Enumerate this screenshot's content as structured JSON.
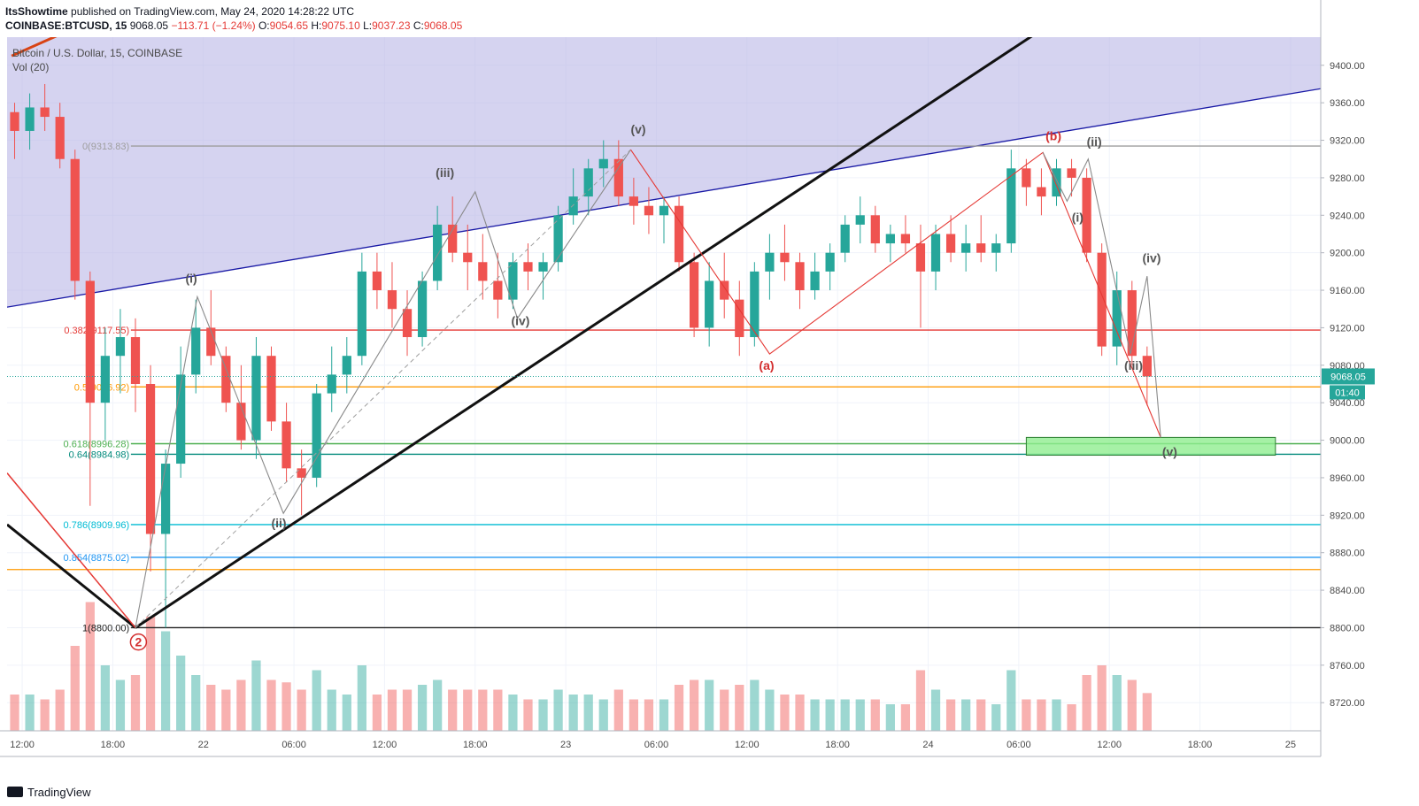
{
  "header": {
    "publisher": "ItsShowtime",
    "published_text": "published on TradingView.com, May 24, 2020 14:28:22 UTC",
    "symbol": "COINBASE:BTCUSD, 15",
    "last": "9068.05",
    "change": "−113.71 (−1.24%)",
    "o_label": "O:",
    "o": "9054.65",
    "h_label": "H:",
    "h": "9075.10",
    "l_label": "L:",
    "l": "9037.23",
    "c_label": "C:",
    "c": "9068.05"
  },
  "legend": {
    "title": "Bitcoin / U.S. Dollar, 15, COINBASE",
    "volume": "Vol (20)"
  },
  "footer": {
    "brand": "TradingView"
  },
  "colors": {
    "up": "#26a69a",
    "down": "#ef5350",
    "zone": "#b9b6e6",
    "fib382": "#e53935",
    "fib500": "#ff9800",
    "fib618": "#4caf50",
    "fib786": "#00bcd4",
    "fib854": "#2196f3"
  },
  "chart_data": {
    "type": "candlestick",
    "y_axis": {
      "min": 8690,
      "max": 9430,
      "ticks": [
        "9400.00",
        "9360.00",
        "9320.00",
        "9280.00",
        "9240.00",
        "9200.00",
        "9160.00",
        "9120.00",
        "9080.00",
        "9040.00",
        "9000.00",
        "8960.00",
        "8920.00",
        "8880.00",
        "8840.00",
        "8800.00",
        "8760.00",
        "8720.00"
      ]
    },
    "x_axis": {
      "start": "2020-05-21 11:00",
      "end": "2020-05-25 03:00",
      "ticks": [
        {
          "label": "12:00",
          "t": 1
        },
        {
          "label": "18:00",
          "t": 7
        },
        {
          "label": "22",
          "t": 13
        },
        {
          "label": "06:00",
          "t": 19
        },
        {
          "label": "12:00",
          "t": 25
        },
        {
          "label": "18:00",
          "t": 31
        },
        {
          "label": "23",
          "t": 37
        },
        {
          "label": "06:00",
          "t": 43
        },
        {
          "label": "12:00",
          "t": 49
        },
        {
          "label": "18:00",
          "t": 55
        },
        {
          "label": "24",
          "t": 61
        },
        {
          "label": "06:00",
          "t": 67
        },
        {
          "label": "12:00",
          "t": 73
        },
        {
          "label": "18:00",
          "t": 79
        },
        {
          "label": "25",
          "t": 85
        }
      ]
    },
    "last_price": {
      "value": 9068.05,
      "label": "9068.05",
      "countdown": "01:40"
    },
    "fib_levels": [
      {
        "ratio": "0",
        "label": "0(9313.83)",
        "value": 9313.83,
        "color": "#9e9e9e"
      },
      {
        "ratio": "0.382",
        "label": "0.382(9117.55)",
        "value": 9117.55,
        "color": "#e53935"
      },
      {
        "ratio": "0.5",
        "label": "0.5(9056.92)",
        "value": 9056.92,
        "color": "#ff9800"
      },
      {
        "ratio": "0.618",
        "label": "0.618(8996.28)",
        "value": 8996.28,
        "color": "#4caf50"
      },
      {
        "ratio": "0.64",
        "label": "0.64(8984.98)",
        "value": 8984.98,
        "color": "#00897b"
      },
      {
        "ratio": "0.786",
        "label": "0.786(8909.96)",
        "value": 8909.96,
        "color": "#00bcd4"
      },
      {
        "ratio": "0.854",
        "label": "0.854(8875.02)",
        "value": 8875.02,
        "color": "#2196f3"
      },
      {
        "ratio": "1",
        "label": "1(8800.00)",
        "value": 8800.0,
        "color": "#212121"
      }
    ],
    "extra_level": {
      "value": 8862,
      "color": "#ff9800"
    },
    "target_zone": {
      "t_start": 67.5,
      "t_end": 84,
      "high": 9003,
      "low": 8984
    },
    "labels": [
      {
        "text": "(i)",
        "t": 12.2,
        "v": 9168,
        "color": "#555555"
      },
      {
        "text": "(ii)",
        "t": 18.0,
        "v": 8907,
        "color": "#555555"
      },
      {
        "text": "(iii)",
        "t": 29.0,
        "v": 9281,
        "color": "#555555"
      },
      {
        "text": "(iv)",
        "t": 34.0,
        "v": 9123,
        "color": "#555555"
      },
      {
        "text": "(v)",
        "t": 41.8,
        "v": 9327,
        "color": "#555555"
      },
      {
        "text": "(a)",
        "t": 50.3,
        "v": 9075,
        "color": "#d32f2f"
      },
      {
        "text": "(b)",
        "t": 69.3,
        "v": 9320,
        "color": "#d32f2f"
      },
      {
        "text": "(ii)",
        "t": 72.0,
        "v": 9314,
        "color": "#555555"
      },
      {
        "text": "(i)",
        "t": 70.9,
        "v": 9233,
        "color": "#555555"
      },
      {
        "text": "(iv)",
        "t": 75.8,
        "v": 9190,
        "color": "#555555"
      },
      {
        "text": "(iii)",
        "t": 74.6,
        "v": 9075,
        "color": "#555555"
      },
      {
        "text": "(v)",
        "t": 77.0,
        "v": 8983,
        "color": "#555555"
      },
      {
        "text": "2",
        "t": 8.7,
        "v": 8780,
        "color": "#d32f2f"
      }
    ],
    "candles": [
      [
        9350,
        9360,
        9300,
        9330
      ],
      [
        9330,
        9370,
        9310,
        9355
      ],
      [
        9355,
        9380,
        9330,
        9345
      ],
      [
        9345,
        9360,
        9290,
        9300
      ],
      [
        9300,
        9310,
        9150,
        9170
      ],
      [
        9170,
        9180,
        8930,
        9040
      ],
      [
        9040,
        9120,
        9000,
        9090
      ],
      [
        9090,
        9140,
        9050,
        9110
      ],
      [
        9110,
        9130,
        9030,
        9060
      ],
      [
        9060,
        9080,
        8860,
        8900
      ],
      [
        8900,
        8990,
        8800,
        8975
      ],
      [
        8975,
        9100,
        8960,
        9070
      ],
      [
        9070,
        9150,
        9050,
        9120
      ],
      [
        9120,
        9160,
        9080,
        9090
      ],
      [
        9090,
        9100,
        9030,
        9040
      ],
      [
        9040,
        9080,
        8990,
        9000
      ],
      [
        9000,
        9110,
        8980,
        9090
      ],
      [
        9090,
        9100,
        9010,
        9020
      ],
      [
        9020,
        9040,
        8955,
        8970
      ],
      [
        8970,
        8990,
        8920,
        8960
      ],
      [
        8960,
        9060,
        8950,
        9050
      ],
      [
        9050,
        9100,
        9030,
        9070
      ],
      [
        9070,
        9110,
        9050,
        9090
      ],
      [
        9090,
        9200,
        9080,
        9180
      ],
      [
        9180,
        9200,
        9140,
        9160
      ],
      [
        9160,
        9190,
        9120,
        9140
      ],
      [
        9140,
        9160,
        9090,
        9110
      ],
      [
        9110,
        9180,
        9100,
        9170
      ],
      [
        9170,
        9250,
        9160,
        9230
      ],
      [
        9230,
        9260,
        9190,
        9200
      ],
      [
        9200,
        9230,
        9160,
        9190
      ],
      [
        9190,
        9220,
        9150,
        9170
      ],
      [
        9170,
        9200,
        9130,
        9150
      ],
      [
        9150,
        9200,
        9140,
        9190
      ],
      [
        9190,
        9210,
        9160,
        9180
      ],
      [
        9180,
        9200,
        9150,
        9190
      ],
      [
        9190,
        9250,
        9180,
        9240
      ],
      [
        9240,
        9290,
        9230,
        9260
      ],
      [
        9260,
        9300,
        9240,
        9290
      ],
      [
        9290,
        9320,
        9270,
        9300
      ],
      [
        9300,
        9320,
        9250,
        9260
      ],
      [
        9260,
        9280,
        9230,
        9250
      ],
      [
        9250,
        9270,
        9220,
        9240
      ],
      [
        9240,
        9260,
        9210,
        9250
      ],
      [
        9250,
        9260,
        9180,
        9190
      ],
      [
        9190,
        9200,
        9110,
        9120
      ],
      [
        9120,
        9190,
        9100,
        9170
      ],
      [
        9170,
        9200,
        9130,
        9150
      ],
      [
        9150,
        9170,
        9090,
        9110
      ],
      [
        9110,
        9190,
        9100,
        9180
      ],
      [
        9180,
        9220,
        9150,
        9200
      ],
      [
        9200,
        9230,
        9170,
        9190
      ],
      [
        9190,
        9200,
        9140,
        9160
      ],
      [
        9160,
        9200,
        9150,
        9180
      ],
      [
        9180,
        9210,
        9160,
        9200
      ],
      [
        9200,
        9240,
        9190,
        9230
      ],
      [
        9230,
        9260,
        9210,
        9240
      ],
      [
        9240,
        9250,
        9200,
        9210
      ],
      [
        9210,
        9230,
        9190,
        9220
      ],
      [
        9220,
        9240,
        9200,
        9210
      ],
      [
        9210,
        9230,
        9120,
        9180
      ],
      [
        9180,
        9230,
        9160,
        9220
      ],
      [
        9220,
        9240,
        9190,
        9200
      ],
      [
        9200,
        9230,
        9180,
        9210
      ],
      [
        9210,
        9240,
        9190,
        9200
      ],
      [
        9200,
        9220,
        9180,
        9210
      ],
      [
        9210,
        9310,
        9200,
        9290
      ],
      [
        9290,
        9300,
        9250,
        9270
      ],
      [
        9270,
        9290,
        9240,
        9260
      ],
      [
        9260,
        9300,
        9250,
        9290
      ],
      [
        9290,
        9300,
        9260,
        9280
      ],
      [
        9280,
        9290,
        9190,
        9200
      ],
      [
        9200,
        9210,
        9090,
        9100
      ],
      [
        9100,
        9180,
        9080,
        9160
      ],
      [
        9160,
        9170,
        9080,
        9090
      ],
      [
        9090,
        9100,
        9037,
        9068
      ]
    ]
  }
}
